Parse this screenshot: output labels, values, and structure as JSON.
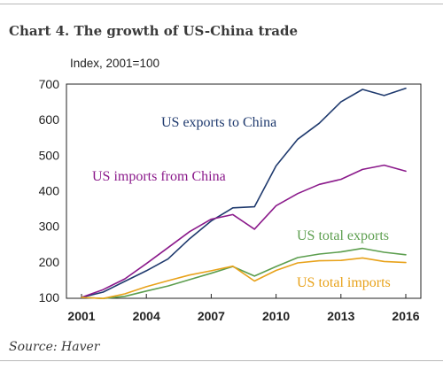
{
  "title": "Chart 4. The growth of US-China trade",
  "source": "Source: Haver",
  "chart_data": {
    "type": "line",
    "ylabel": "Index, 2001=100",
    "xlabel": "",
    "xlim": [
      2001,
      2016
    ],
    "ylim": [
      100,
      700
    ],
    "x_ticks": [
      "2001",
      "2004",
      "2007",
      "2010",
      "2013",
      "2016"
    ],
    "y_ticks": [
      "100",
      "200",
      "300",
      "400",
      "500",
      "600",
      "700"
    ],
    "grid": false,
    "x": [
      2001,
      2002,
      2003,
      2004,
      2005,
      2006,
      2007,
      2008,
      2009,
      2010,
      2011,
      2012,
      2013,
      2014,
      2015,
      2016
    ],
    "series": [
      {
        "name": "US exports to China",
        "color": "#1f3a6e",
        "values": [
          100,
          115,
          145,
          175,
          208,
          265,
          315,
          352,
          355,
          470,
          545,
          590,
          650,
          685,
          668,
          688
        ]
      },
      {
        "name": "US imports from China",
        "color": "#8b1a8b",
        "values": [
          100,
          122,
          152,
          195,
          240,
          285,
          320,
          333,
          292,
          358,
          392,
          418,
          432,
          460,
          472,
          455
        ]
      },
      {
        "name": "US total exports",
        "color": "#5c9e4e",
        "values": [
          100,
          97,
          103,
          118,
          132,
          150,
          168,
          187,
          160,
          187,
          212,
          222,
          228,
          238,
          227,
          220
        ]
      },
      {
        "name": "US total imports",
        "color": "#e8a21a",
        "values": [
          100,
          97,
          110,
          130,
          147,
          163,
          175,
          188,
          146,
          176,
          197,
          203,
          204,
          211,
          201,
          198
        ]
      }
    ]
  }
}
